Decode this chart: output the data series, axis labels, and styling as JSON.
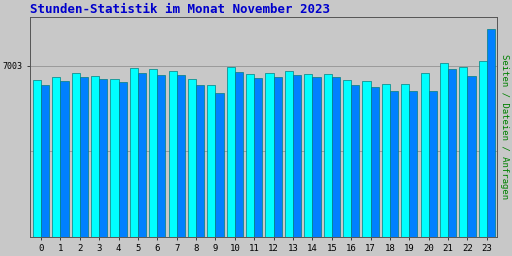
{
  "title": "Stunden-Statistik im Monat November 2023",
  "ylabel": "Seiten / Dateien / Anfragen",
  "xlabel_ticks": [
    0,
    1,
    2,
    3,
    4,
    5,
    6,
    7,
    8,
    9,
    10,
    11,
    12,
    13,
    14,
    15,
    16,
    17,
    18,
    19,
    20,
    21,
    22,
    23
  ],
  "ytick_label": "7003",
  "background_color": "#c8c8c8",
  "plot_bg_color": "#c8c8c8",
  "bar_color_cyan": "#00ffff",
  "bar_color_blue": "#0080ff",
  "bar_outline_dark": "#008080",
  "title_color": "#0000cc",
  "ylabel_color": "#008000",
  "tick_color": "#000000",
  "series_cyan": [
    6400,
    6550,
    6700,
    6600,
    6450,
    6900,
    6850,
    6780,
    6450,
    6200,
    6950,
    6650,
    6700,
    6780,
    6680,
    6680,
    6430,
    6380,
    6250,
    6250,
    6700,
    7100,
    6950,
    7200
  ],
  "series_blue": [
    6200,
    6380,
    6530,
    6450,
    6320,
    6700,
    6620,
    6620,
    6200,
    5900,
    6730,
    6480,
    6530,
    6620,
    6540,
    6540,
    6200,
    6110,
    5980,
    5980,
    5980,
    6860,
    6600,
    8500
  ],
  "ymax": 9000,
  "ymin": 0,
  "ytick_pos": 7003,
  "hline1": 7003,
  "hline2": 3500,
  "figsize": [
    5.12,
    2.56
  ],
  "dpi": 100
}
